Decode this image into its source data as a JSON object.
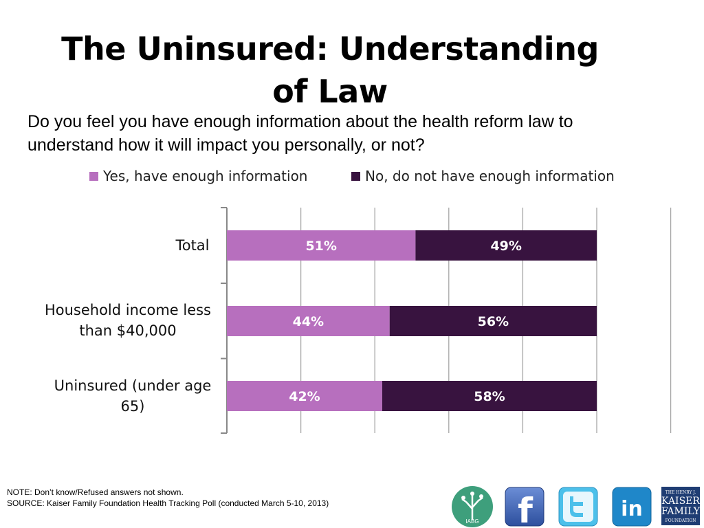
{
  "title": "The Uninsured: Understanding of Law",
  "subtitle": "Do you feel you have enough information about the health reform law to understand how it will impact you personally, or not?",
  "footer": {
    "note": "NOTE: Don’t know/Refused answers not shown.",
    "source": "SOURCE: Kaiser Family Foundation Health Tracking Poll (conducted March 5-10, 2013)"
  },
  "logos": {
    "iabg": "IABG",
    "facebook": "f",
    "linkedin": "in",
    "kff_line1": "THE HENRY J.",
    "kff_line2": "KAISER",
    "kff_line3": "FAMILY",
    "kff_line4": "FOUNDATION"
  },
  "chart_data": {
    "type": "bar",
    "orientation": "horizontal",
    "stacked": true,
    "categories": [
      "Total",
      "Household income less than $40,000",
      "Uninsured (under age 65)"
    ],
    "series": [
      {
        "name": "Yes, have enough information",
        "values": [
          51,
          44,
          42
        ],
        "labels": [
          "51%",
          "44%",
          "42%"
        ],
        "color": "#b76fbe"
      },
      {
        "name": "No, do not have enough information",
        "values": [
          49,
          56,
          58
        ],
        "labels": [
          "49%",
          "56%",
          "58%"
        ],
        "color": "#38133f"
      }
    ],
    "xlim": [
      0,
      120
    ],
    "grid": true,
    "legend_position": "top"
  }
}
